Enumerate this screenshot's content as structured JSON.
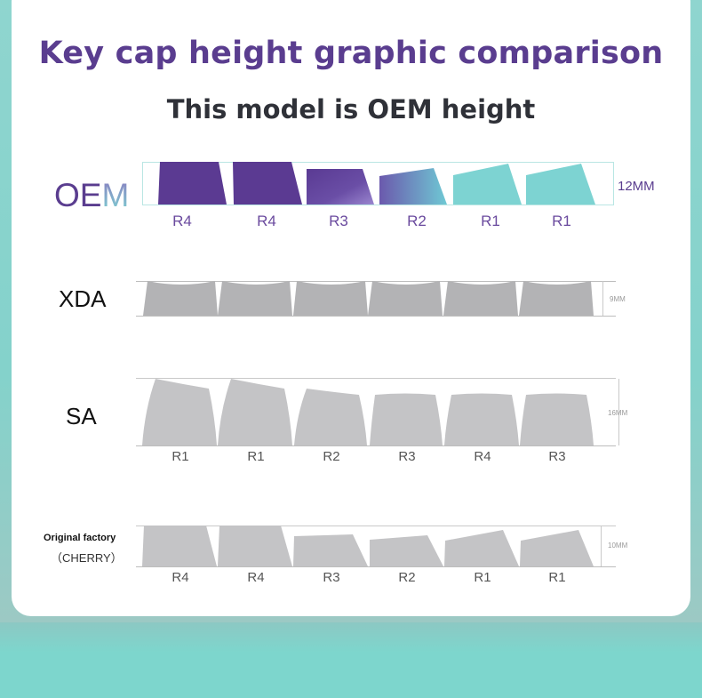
{
  "header": {
    "title": "Key cap height graphic comparison",
    "subtitle": "This model is OEM height"
  },
  "profiles": {
    "oem": {
      "label_dark": "OE",
      "label_light": "M",
      "height": "12MM",
      "rows": [
        "R4",
        "R4",
        "R3",
        "R2",
        "R1",
        "R1"
      ]
    },
    "xda": {
      "label": "XDA",
      "height": "9MM"
    },
    "sa": {
      "label": "SA",
      "height": "16MM",
      "rows": [
        "R1",
        "R1",
        "R2",
        "R3",
        "R4",
        "R3"
      ]
    },
    "cherry": {
      "label": "Original factory",
      "sublabel": "（CHERRY）",
      "height": "10MM",
      "rows": [
        "R4",
        "R4",
        "R3",
        "R2",
        "R1",
        "R1"
      ]
    }
  },
  "colors": {
    "title": "#5a3d8f",
    "oem_purple": "#5b3a92",
    "oem_teal": "#7dd3d2",
    "grey_key": "#c4c4c6",
    "xda_key": "#b3b3b5",
    "background_teal": "#7ecfc8"
  }
}
